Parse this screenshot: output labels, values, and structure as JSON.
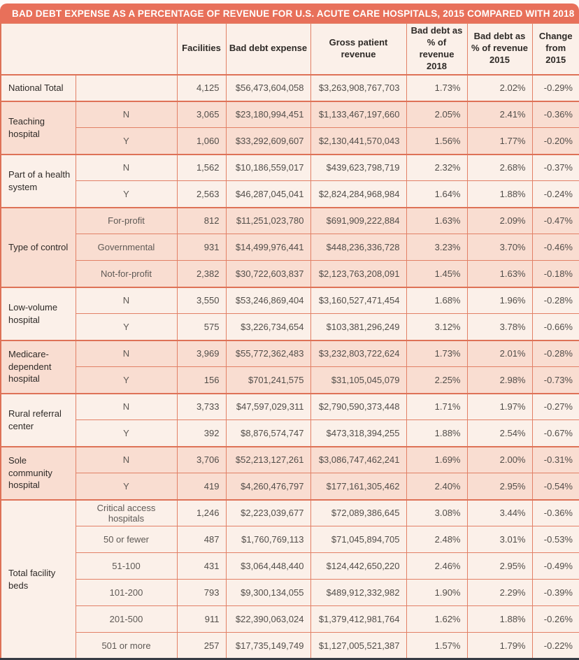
{
  "title": "BAD DEBT EXPENSE AS A PERCENTAGE OF REVENUE FOR U.S. ACUTE CARE HOSPITALS, 2015 COMPARED WITH 2018",
  "colors": {
    "accent": "#E8705A",
    "border": "#E28066",
    "row_cream": "#FBF0E9",
    "row_pink": "#F9DDD1",
    "bottom_bar": "#363B44",
    "title_text": "#FFFFFF"
  },
  "chart_data": {
    "type": "table",
    "title": "BAD DEBT EXPENSE AS A PERCENTAGE OF REVENUE FOR U.S. ACUTE CARE HOSPITALS, 2015 COMPARED WITH 2018",
    "header": {
      "facilities": "Facilities",
      "bad_debt_expense": "Bad debt expense",
      "gross_patient_revenue": "Gross patient\nrevenue",
      "pct_2018": "Bad debt as\n% of revenue\n2018",
      "pct_2015": "Bad debt as\n% of revenue\n2015",
      "change": "Change\nfrom\n2015"
    },
    "groups": [
      {
        "label": "National Total",
        "rows": [
          {
            "sub": "",
            "facilities": "4,125",
            "bad_debt_expense": "$56,473,604,058",
            "gross_patient_revenue": "$3,263,908,767,703",
            "pct_2018": "1.73%",
            "pct_2015": "2.02%",
            "change": "-0.29%"
          }
        ]
      },
      {
        "label": "Teaching hospital",
        "rows": [
          {
            "sub": "N",
            "facilities": "3,065",
            "bad_debt_expense": "$23,180,994,451",
            "gross_patient_revenue": "$1,133,467,197,660",
            "pct_2018": "2.05%",
            "pct_2015": "2.41%",
            "change": "-0.36%"
          },
          {
            "sub": "Y",
            "facilities": "1,060",
            "bad_debt_expense": "$33,292,609,607",
            "gross_patient_revenue": "$2,130,441,570,043",
            "pct_2018": "1.56%",
            "pct_2015": "1.77%",
            "change": "-0.20%"
          }
        ]
      },
      {
        "label": "Part of a health system",
        "rows": [
          {
            "sub": "N",
            "facilities": "1,562",
            "bad_debt_expense": "$10,186,559,017",
            "gross_patient_revenue": "$439,623,798,719",
            "pct_2018": "2.32%",
            "pct_2015": "2.68%",
            "change": "-0.37%"
          },
          {
            "sub": "Y",
            "facilities": "2,563",
            "bad_debt_expense": "$46,287,045,041",
            "gross_patient_revenue": "$2,824,284,968,984",
            "pct_2018": "1.64%",
            "pct_2015": "1.88%",
            "change": "-0.24%"
          }
        ]
      },
      {
        "label": "Type of control",
        "rows": [
          {
            "sub": "For-profit",
            "facilities": "812",
            "bad_debt_expense": "$11,251,023,780",
            "gross_patient_revenue": "$691,909,222,884",
            "pct_2018": "1.63%",
            "pct_2015": "2.09%",
            "change": "-0.47%"
          },
          {
            "sub": "Governmental",
            "facilities": "931",
            "bad_debt_expense": "$14,499,976,441",
            "gross_patient_revenue": "$448,236,336,728",
            "pct_2018": "3.23%",
            "pct_2015": "3.70%",
            "change": "-0.46%"
          },
          {
            "sub": "Not-for-profit",
            "facilities": "2,382",
            "bad_debt_expense": "$30,722,603,837",
            "gross_patient_revenue": "$2,123,763,208,091",
            "pct_2018": "1.45%",
            "pct_2015": "1.63%",
            "change": "-0.18%"
          }
        ]
      },
      {
        "label": "Low-volume hospital",
        "rows": [
          {
            "sub": "N",
            "facilities": "3,550",
            "bad_debt_expense": "$53,246,869,404",
            "gross_patient_revenue": "$3,160,527,471,454",
            "pct_2018": "1.68%",
            "pct_2015": "1.96%",
            "change": "-0.28%"
          },
          {
            "sub": "Y",
            "facilities": "575",
            "bad_debt_expense": "$3,226,734,654",
            "gross_patient_revenue": "$103,381,296,249",
            "pct_2018": "3.12%",
            "pct_2015": "3.78%",
            "change": "-0.66%"
          }
        ]
      },
      {
        "label": "Medicare-dependent hospital",
        "rows": [
          {
            "sub": "N",
            "facilities": "3,969",
            "bad_debt_expense": "$55,772,362,483",
            "gross_patient_revenue": "$3,232,803,722,624",
            "pct_2018": "1.73%",
            "pct_2015": "2.01%",
            "change": "-0.28%"
          },
          {
            "sub": "Y",
            "facilities": "156",
            "bad_debt_expense": "$701,241,575",
            "gross_patient_revenue": "$31,105,045,079",
            "pct_2018": "2.25%",
            "pct_2015": "2.98%",
            "change": "-0.73%"
          }
        ]
      },
      {
        "label": "Rural referral center",
        "rows": [
          {
            "sub": "N",
            "facilities": "3,733",
            "bad_debt_expense": "$47,597,029,311",
            "gross_patient_revenue": "$2,790,590,373,448",
            "pct_2018": "1.71%",
            "pct_2015": "1.97%",
            "change": "-0.27%"
          },
          {
            "sub": "Y",
            "facilities": "392",
            "bad_debt_expense": "$8,876,574,747",
            "gross_patient_revenue": "$473,318,394,255",
            "pct_2018": "1.88%",
            "pct_2015": "2.54%",
            "change": "-0.67%"
          }
        ]
      },
      {
        "label": "Sole community hospital",
        "rows": [
          {
            "sub": "N",
            "facilities": "3,706",
            "bad_debt_expense": "$52,213,127,261",
            "gross_patient_revenue": "$3,086,747,462,241",
            "pct_2018": "1.69%",
            "pct_2015": "2.00%",
            "change": "-0.31%"
          },
          {
            "sub": "Y",
            "facilities": "419",
            "bad_debt_expense": "$4,260,476,797",
            "gross_patient_revenue": "$177,161,305,462",
            "pct_2018": "2.40%",
            "pct_2015": "2.95%",
            "change": "-0.54%"
          }
        ]
      },
      {
        "label": "Total facility beds",
        "rows": [
          {
            "sub": "Critical access hospitals",
            "facilities": "1,246",
            "bad_debt_expense": "$2,223,039,677",
            "gross_patient_revenue": "$72,089,386,645",
            "pct_2018": "3.08%",
            "pct_2015": "3.44%",
            "change": "-0.36%"
          },
          {
            "sub": "50 or fewer",
            "facilities": "487",
            "bad_debt_expense": "$1,760,769,113",
            "gross_patient_revenue": "$71,045,894,705",
            "pct_2018": "2.48%",
            "pct_2015": "3.01%",
            "change": "-0.53%"
          },
          {
            "sub": "51-100",
            "facilities": "431",
            "bad_debt_expense": "$3,064,448,440",
            "gross_patient_revenue": "$124,442,650,220",
            "pct_2018": "2.46%",
            "pct_2015": "2.95%",
            "change": "-0.49%"
          },
          {
            "sub": "101-200",
            "facilities": "793",
            "bad_debt_expense": "$9,300,134,055",
            "gross_patient_revenue": "$489,912,332,982",
            "pct_2018": "1.90%",
            "pct_2015": "2.29%",
            "change": "-0.39%"
          },
          {
            "sub": "201-500",
            "facilities": "911",
            "bad_debt_expense": "$22,390,063,024",
            "gross_patient_revenue": "$1,379,412,981,764",
            "pct_2018": "1.62%",
            "pct_2015": "1.88%",
            "change": "-0.26%"
          },
          {
            "sub": "501 or more",
            "facilities": "257",
            "bad_debt_expense": "$17,735,149,749",
            "gross_patient_revenue": "$1,127,005,521,387",
            "pct_2018": "1.57%",
            "pct_2015": "1.79%",
            "change": "-0.22%"
          }
        ]
      }
    ]
  }
}
